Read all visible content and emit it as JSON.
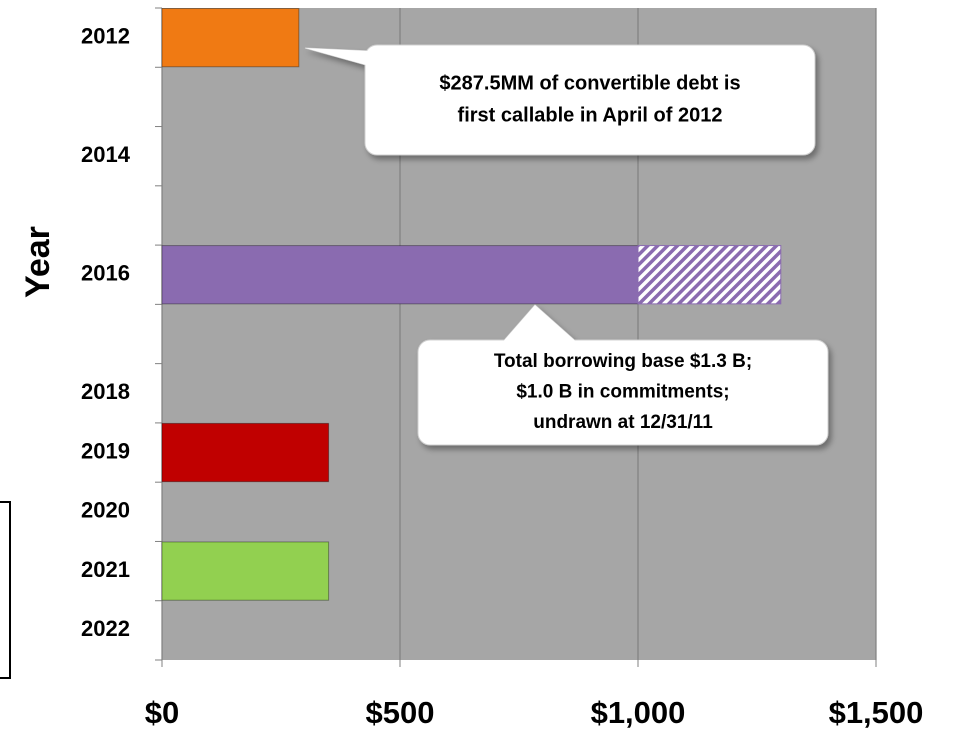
{
  "chart_data": {
    "type": "bar",
    "orientation": "horizontal",
    "stacked": true,
    "y_label": "Year",
    "categories": [
      "2012",
      null,
      "2014",
      null,
      "2016",
      null,
      "2018",
      "2019",
      "2020",
      "2021",
      "2022"
    ],
    "series": [
      {
        "color": "#f07a13",
        "values": [
          287.5,
          null,
          null,
          null,
          null,
          null,
          null,
          null,
          null,
          null,
          null
        ]
      },
      {
        "color": "#8a6bb0",
        "values": [
          null,
          null,
          null,
          null,
          1000,
          null,
          null,
          null,
          null,
          null,
          null
        ]
      },
      {
        "color": "#8a6bb0",
        "pattern": "hatched",
        "values": [
          null,
          null,
          null,
          null,
          300,
          null,
          null,
          null,
          null,
          null,
          null
        ]
      },
      {
        "color": "#c00000",
        "values": [
          null,
          null,
          null,
          null,
          null,
          null,
          null,
          350,
          null,
          null,
          null
        ]
      },
      {
        "color": "#92d050",
        "values": [
          null,
          null,
          null,
          null,
          null,
          null,
          null,
          null,
          null,
          350,
          null
        ]
      }
    ],
    "xlim": [
      0,
      1500
    ],
    "xticks": [
      {
        "value": 0,
        "label": "$0"
      },
      {
        "value": 500,
        "label": "$500"
      },
      {
        "value": 1000,
        "label": "$1,000"
      },
      {
        "value": 1500,
        "label": "$1,500"
      }
    ],
    "grid": true,
    "annotations": [
      {
        "lines": [
          "$287.5MM of convertible debt is",
          "first callable in April of 2012"
        ]
      },
      {
        "lines": [
          "Total borrowing base $1.3 B;",
          "$1.0 B in commitments;",
          "undrawn at 12/31/11"
        ]
      }
    ]
  }
}
